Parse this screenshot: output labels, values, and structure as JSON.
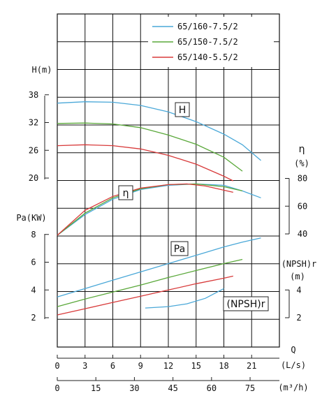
{
  "chart_data": {
    "type": "line",
    "x_lps_ticks": [
      "0",
      "3",
      "6",
      "9",
      "12",
      "15",
      "18",
      "21"
    ],
    "x_m3h_ticks": [
      "0",
      "15",
      "30",
      "45",
      "60",
      "75"
    ],
    "x_label_top": "Q",
    "x_unit_lps": "(L/s)",
    "x_unit_m3h": "(m³/h)",
    "head_axis": {
      "label": "H(m)",
      "ticks": [
        "38",
        "32",
        "26",
        "20"
      ]
    },
    "power_axis": {
      "label": "Pa(KW)",
      "ticks": [
        "8",
        "6",
        "4",
        "2"
      ]
    },
    "eff_axis": {
      "label_top": "η",
      "label_unit": "(%)",
      "ticks": [
        "80",
        "60",
        "40"
      ]
    },
    "npsh_axis": {
      "label_top": "(NPSH)r",
      "label_unit": "(m)",
      "ticks": [
        "4",
        "2"
      ]
    },
    "curve_labels": {
      "head": "H",
      "eff": "η",
      "power": "Pa",
      "npsh": "(NPSH)r"
    },
    "legend": [
      {
        "name": "65/160-7.5/2",
        "color": "#4aa8d8"
      },
      {
        "name": "65/150-7.5/2",
        "color": "#5aa83a"
      },
      {
        "name": "65/140-5.5/2",
        "color": "#d83a3a"
      }
    ],
    "series": [
      {
        "name": "65/160-7.5/2",
        "color": "#4aa8d8",
        "head_m": [
          [
            0,
            36.2
          ],
          [
            3,
            36.5
          ],
          [
            6,
            36.4
          ],
          [
            9,
            35.7
          ],
          [
            12,
            34.3
          ],
          [
            15,
            32.2
          ],
          [
            18,
            29.5
          ],
          [
            20,
            27.2
          ],
          [
            22,
            23.8
          ]
        ],
        "eff_pct": [
          [
            0,
            39
          ],
          [
            3,
            54
          ],
          [
            6,
            65
          ],
          [
            9,
            72
          ],
          [
            12,
            75
          ],
          [
            15,
            76
          ],
          [
            18,
            75
          ],
          [
            20,
            71
          ],
          [
            22,
            66
          ]
        ],
        "power_kw": [
          [
            0,
            3.5
          ],
          [
            3,
            4.1
          ],
          [
            6,
            4.7
          ],
          [
            9,
            5.3
          ],
          [
            12,
            5.9
          ],
          [
            15,
            6.5
          ],
          [
            18,
            7.1
          ],
          [
            20,
            7.45
          ],
          [
            22,
            7.75
          ]
        ],
        "npsh_m": [
          [
            9.5,
            2.7
          ],
          [
            12,
            2.8
          ],
          [
            14,
            3.0
          ],
          [
            16,
            3.4
          ],
          [
            18,
            4.1
          ]
        ]
      },
      {
        "name": "65/150-7.5/2",
        "color": "#5aa83a",
        "head_m": [
          [
            0,
            31.8
          ],
          [
            3,
            31.9
          ],
          [
            6,
            31.7
          ],
          [
            9,
            30.9
          ],
          [
            12,
            29.3
          ],
          [
            15,
            27.3
          ],
          [
            18,
            24.5
          ],
          [
            20,
            21.5
          ]
        ],
        "eff_pct": [
          [
            0,
            39
          ],
          [
            3,
            55
          ],
          [
            6,
            66
          ],
          [
            9,
            72.5
          ],
          [
            12,
            75.5
          ],
          [
            15,
            76
          ],
          [
            18,
            74
          ],
          [
            20,
            71
          ]
        ],
        "power_kw": [
          [
            0,
            2.8
          ],
          [
            3,
            3.35
          ],
          [
            6,
            3.85
          ],
          [
            9,
            4.35
          ],
          [
            12,
            4.9
          ],
          [
            15,
            5.4
          ],
          [
            18,
            5.9
          ],
          [
            20,
            6.2
          ]
        ],
        "npsh_m": []
      },
      {
        "name": "65/140-5.5/2",
        "color": "#d83a3a",
        "head_m": [
          [
            0,
            27.0
          ],
          [
            3,
            27.2
          ],
          [
            6,
            27.0
          ],
          [
            9,
            26.3
          ],
          [
            12,
            24.9
          ],
          [
            15,
            23.0
          ],
          [
            18,
            20.4
          ],
          [
            19,
            19.4
          ]
        ],
        "eff_pct": [
          [
            0,
            39
          ],
          [
            3,
            57
          ],
          [
            6,
            67
          ],
          [
            9,
            73
          ],
          [
            12,
            75.5
          ],
          [
            14,
            76
          ],
          [
            16,
            74.5
          ],
          [
            19,
            70
          ]
        ],
        "power_kw": [
          [
            0,
            2.2
          ],
          [
            3,
            2.65
          ],
          [
            6,
            3.1
          ],
          [
            9,
            3.55
          ],
          [
            12,
            4.0
          ],
          [
            15,
            4.45
          ],
          [
            18,
            4.85
          ],
          [
            19,
            5.0
          ]
        ],
        "npsh_m": []
      }
    ]
  }
}
